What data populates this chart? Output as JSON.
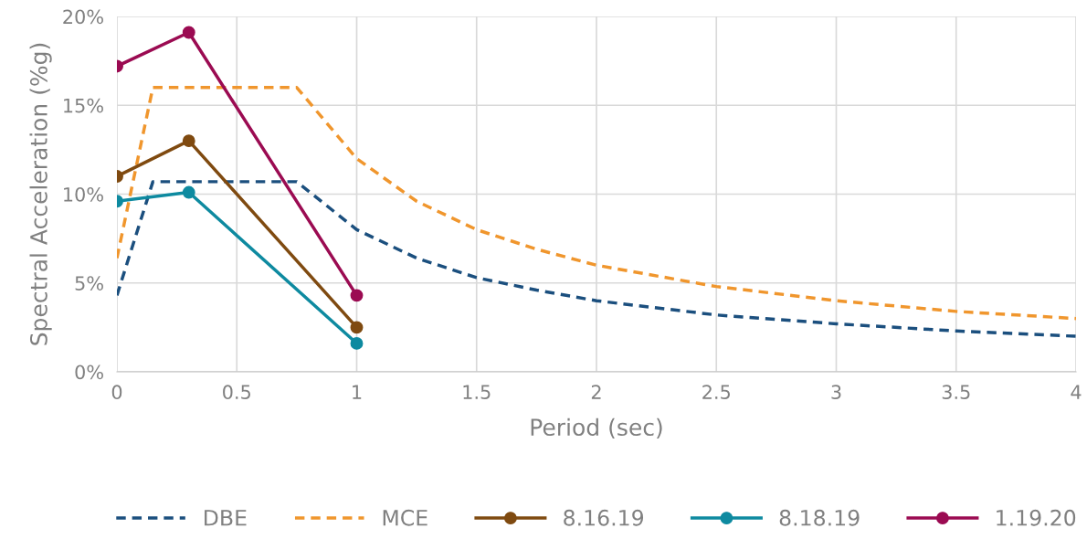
{
  "chart_data": {
    "type": "line",
    "xlabel": "Period (sec)",
    "ylabel": "Spectral Acceleration (%g)",
    "xlim": [
      0,
      4
    ],
    "xticks": [
      0,
      0.5,
      1,
      1.5,
      2,
      2.5,
      3,
      3.5,
      4
    ],
    "ylim": [
      0,
      20
    ],
    "yticks": [
      {
        "value": 0,
        "label": "0%"
      },
      {
        "value": 5,
        "label": "5%"
      },
      {
        "value": 10,
        "label": "10%"
      },
      {
        "value": 15,
        "label": "15%"
      },
      {
        "value": 20,
        "label": "20%"
      }
    ],
    "grid": true,
    "legend": "bottom",
    "series": [
      {
        "name": "DBE",
        "color": "#1b4f7e",
        "line_style": "dashed",
        "marker": "none",
        "x": [
          0,
          0.15,
          0.75,
          1,
          1.25,
          1.5,
          1.75,
          2,
          2.5,
          3,
          3.5,
          4
        ],
        "values": [
          4.3,
          10.7,
          10.7,
          8,
          6.4,
          5.3,
          4.6,
          4,
          3.2,
          2.7,
          2.3,
          2
        ]
      },
      {
        "name": "MCE",
        "color": "#f0962d",
        "line_style": "dashed",
        "marker": "none",
        "x": [
          0,
          0.15,
          0.75,
          1,
          1.25,
          1.5,
          1.75,
          2,
          2.5,
          3,
          3.5,
          4
        ],
        "values": [
          6.4,
          16,
          16,
          12,
          9.6,
          8,
          6.9,
          6,
          4.8,
          4,
          3.4,
          3
        ]
      },
      {
        "name": "8.16.19",
        "color": "#7f4a10",
        "line_style": "solid",
        "marker": "circle",
        "x": [
          0,
          0.3,
          1
        ],
        "values": [
          11,
          13,
          2.5
        ]
      },
      {
        "name": "8.18.19",
        "color": "#0e8aa0",
        "line_style": "solid",
        "marker": "circle",
        "x": [
          0,
          0.3,
          1
        ],
        "values": [
          9.6,
          10.1,
          1.6
        ]
      },
      {
        "name": "1.19.20",
        "color": "#9b0b52",
        "line_style": "solid",
        "marker": "circle",
        "x": [
          0,
          0.3,
          1
        ],
        "values": [
          17.2,
          19.1,
          4.3
        ]
      }
    ]
  }
}
